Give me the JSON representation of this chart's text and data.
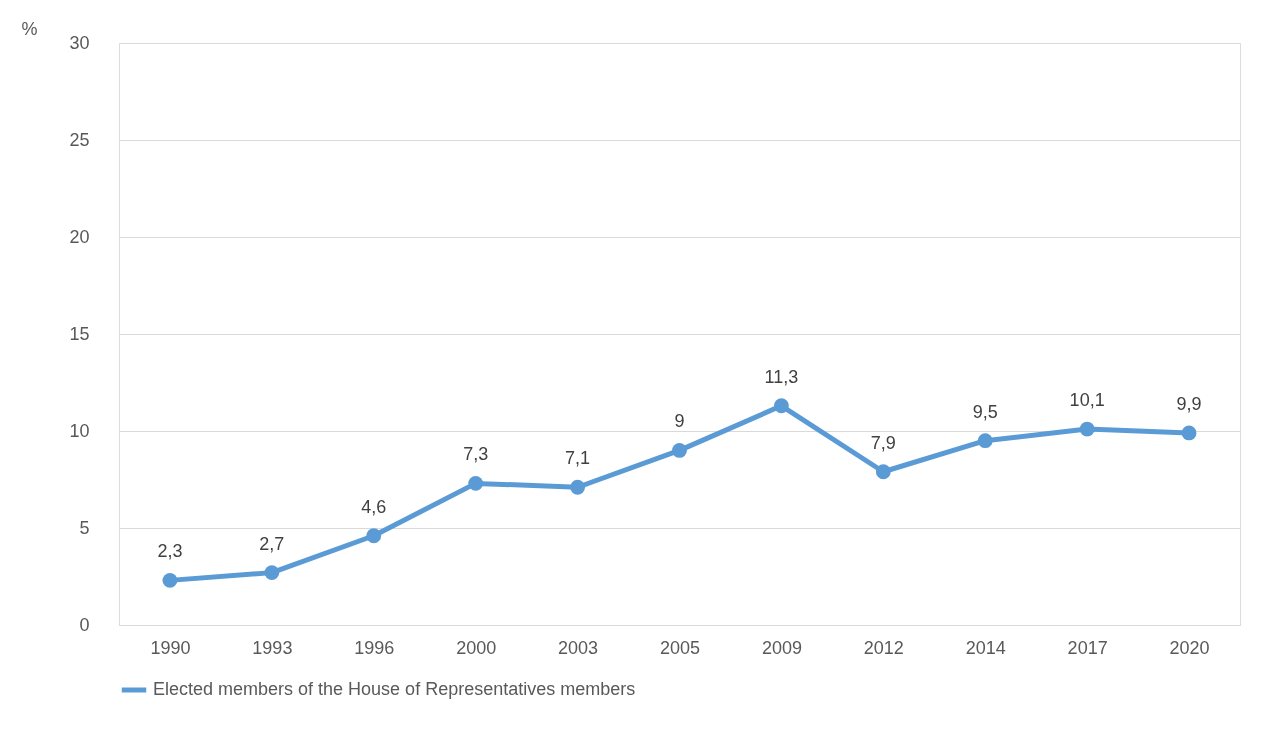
{
  "chart_data": {
    "type": "line",
    "ylabel": "%",
    "categories": [
      "1990",
      "1993",
      "1996",
      "2000",
      "2003",
      "2005",
      "2009",
      "2012",
      "2014",
      "2017",
      "2020"
    ],
    "series": [
      {
        "name": "Elected members of the House of Representatives members",
        "color": "#5b9bd5",
        "values": [
          2.3,
          2.7,
          4.6,
          7.3,
          7.1,
          9,
          11.3,
          7.9,
          9.5,
          10.1,
          9.9
        ],
        "value_labels": [
          "2,3",
          "2,7",
          "4,6",
          "7,3",
          "7,1",
          "9",
          "11,3",
          "7,9",
          "9,5",
          "10,1",
          "9,9"
        ]
      }
    ],
    "ylim": [
      0,
      30
    ],
    "yticks": [
      0,
      5,
      10,
      15,
      20,
      25,
      30
    ],
    "grid": "y",
    "legend": "bottom",
    "marker": "circle",
    "line_style": "solid"
  }
}
